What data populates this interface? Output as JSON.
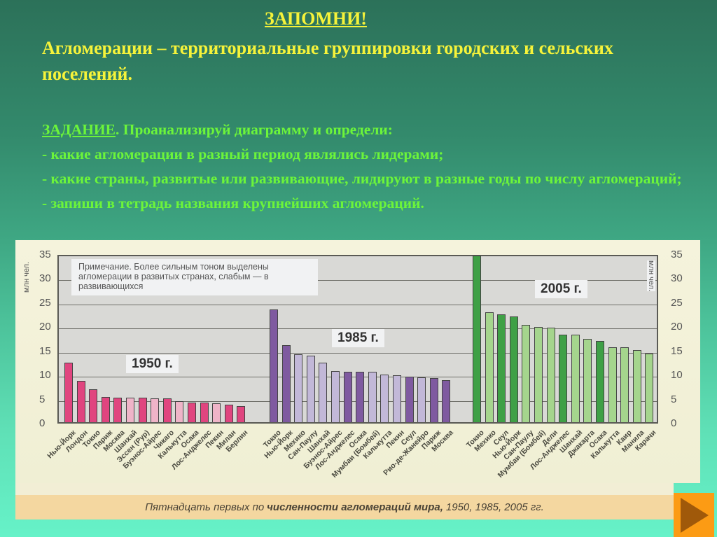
{
  "header": {
    "title": "ЗАПОМНИ!",
    "definition": "Агломерации – территориальные группировки городских и сельских поселений."
  },
  "task": {
    "head": "ЗАДАНИЕ",
    "intro": ". Проанализируй диаграмму и определи:",
    "items": [
      "- какие агломерации в разный период являлись лидерами;",
      "- какие страны, развитые или развивающие, лидируют в разные годы по числу агломераций;",
      "- запиши в тетрадь названия крупнейших агломераций."
    ]
  },
  "chart_data": {
    "type": "bar",
    "title": "Пятнадцать первых по численности агломераций мира, 1950, 1985, 2005 гг.",
    "ylabel": "млн чел.",
    "ylim": [
      0,
      35
    ],
    "yticks": [
      0,
      5,
      10,
      15,
      20,
      25,
      30,
      35
    ],
    "grid": true,
    "note": "Примечание. Более сильным тоном выделены агломерации в развитых странах, слабым — в развивающихся",
    "series": [
      {
        "name": "1950 г.",
        "color_developed": "#e0457f",
        "color_developing": "#efb4c8",
        "categories": [
          "Нью-Йорк",
          "Лондон",
          "Токио",
          "Париж",
          "Москва",
          "Шанхай",
          "Эссен (Рур)",
          "Буэнос-Айрес",
          "Чикаго",
          "Калькутта",
          "Осака",
          "Лос-Анджелес",
          "Пекин",
          "Милан",
          "Берлин"
        ],
        "values": [
          12.3,
          8.6,
          6.8,
          5.2,
          5.1,
          5.1,
          5.1,
          4.9,
          4.9,
          4.4,
          4.1,
          4.0,
          3.9,
          3.6,
          3.3
        ],
        "developed": [
          true,
          true,
          true,
          true,
          true,
          false,
          true,
          false,
          true,
          false,
          true,
          true,
          false,
          true,
          true
        ]
      },
      {
        "name": "1985 г.",
        "color_developed": "#7f5aa0",
        "color_developing": "#c2b8d8",
        "categories": [
          "Токио",
          "Нью-Йорк",
          "Мехико",
          "Сан-Паулу",
          "Шанхай",
          "Буэнос-Айрес",
          "Лос-Анджелес",
          "Осака",
          "Мумбаи (Бомбей)",
          "Калькутта",
          "Пекин",
          "Сеул",
          "Рио-де-Жанейро",
          "Париж",
          "Москва"
        ],
        "values": [
          23.4,
          16.0,
          14.1,
          13.8,
          12.3,
          10.6,
          10.5,
          10.4,
          10.4,
          9.9,
          9.8,
          9.5,
          9.3,
          9.1,
          8.7
        ],
        "developed": [
          true,
          true,
          false,
          false,
          false,
          false,
          true,
          true,
          false,
          false,
          false,
          true,
          false,
          true,
          true
        ]
      },
      {
        "name": "2005 г.",
        "color_developed": "#3fa046",
        "color_developing": "#a5d58d",
        "categories": [
          "Токио",
          "Мехико",
          "Сеул",
          "Нью-Йорк",
          "Сан-Паулу",
          "Мумбаи (Бомбей)",
          "Дели",
          "Лос-Анджелес",
          "Шанхай",
          "Джакарта",
          "Осака",
          "Калькутта",
          "Каир",
          "Манила",
          "Карачи"
        ],
        "values": [
          34.5,
          22.8,
          22.3,
          22.0,
          20.2,
          19.8,
          19.6,
          18.1,
          18.1,
          17.3,
          16.9,
          15.6,
          15.5,
          15.0,
          14.3
        ],
        "developed": [
          true,
          false,
          true,
          true,
          false,
          false,
          false,
          true,
          false,
          false,
          true,
          false,
          false,
          false,
          false
        ]
      }
    ]
  },
  "caption": {
    "pre": "Пятнадцать первых по",
    "bold": "численности агломераций мира,",
    "post": "1950, 1985, 2005 гг."
  },
  "nav": {
    "next_icon": "play-arrow-icon",
    "button_color": "#fc9b14",
    "arrow_color": "#a0590a"
  }
}
